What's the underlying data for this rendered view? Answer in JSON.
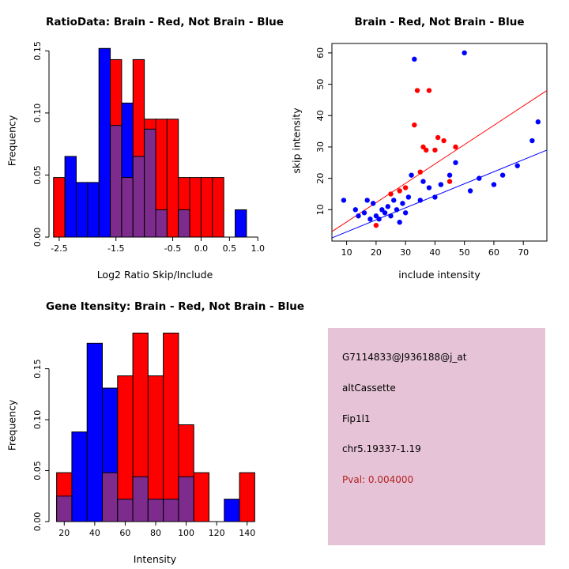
{
  "page": {
    "background": "#FFFFFF"
  },
  "colors": {
    "brain": "#FF0000",
    "not_brain": "#0000FF",
    "overlap": "#7D2B8C",
    "pval": "#B22222",
    "info_bg": "#E6C3D6"
  },
  "chart_data": [
    {
      "type": "bar",
      "subtype": "histogram-overlay",
      "title": "RatioData: Brain - Red, Not Brain - Blue",
      "xlabel": "Log2 Ratio Skip/Include",
      "ylabel": "Frequency",
      "xlim": [
        -2.68,
        1.08
      ],
      "ylim": [
        0,
        0.156
      ],
      "x_ticks": [
        -2.5,
        -1.5,
        -0.5,
        0.0,
        0.5,
        1.0
      ],
      "x_tick_labels": [
        "-2.5",
        "-1.5",
        "-0.5",
        "0.0",
        "0.5",
        "1.0"
      ],
      "y_ticks": [
        0,
        0.05,
        0.1,
        0.15
      ],
      "y_tick_labels": [
        "0.00",
        "0.05",
        "0.10",
        "0.15"
      ],
      "bin_start": -2.6,
      "bin_width": 0.2,
      "series": [
        {
          "name": "Brain",
          "color": "#FF0000",
          "values": [
            0.048,
            0,
            0,
            0,
            0,
            0.143,
            0.048,
            0.143,
            0.095,
            0.095,
            0.095,
            0.048,
            0.048,
            0.048,
            0.048,
            0,
            0,
            0
          ]
        },
        {
          "name": "Not Brain",
          "color": "#0000FF",
          "values": [
            0,
            0.065,
            0.044,
            0.044,
            0.152,
            0.09,
            0.108,
            0.065,
            0.087,
            0.022,
            0,
            0.022,
            0,
            0,
            0,
            0,
            0.022,
            0
          ]
        }
      ],
      "overlap_color": "#7D2B8C",
      "grid": false,
      "margins": {
        "l": 62,
        "r": 28,
        "t": 55,
        "b": 60
      }
    },
    {
      "type": "scatter",
      "title": "Brain - Red, Not Brain - Blue",
      "xlabel": "include intensity",
      "ylabel": "skip intensity",
      "xlim": [
        5,
        78
      ],
      "ylim": [
        0,
        63
      ],
      "x_ticks": [
        10,
        20,
        30,
        40,
        50,
        60,
        70
      ],
      "x_tick_labels": [
        "10",
        "20",
        "30",
        "40",
        "50",
        "60",
        "70"
      ],
      "y_ticks": [
        10,
        20,
        30,
        40,
        50,
        60
      ],
      "y_tick_labels": [
        "10",
        "20",
        "30",
        "40",
        "50",
        "60"
      ],
      "series": [
        {
          "name": "Brain",
          "color": "#FF0000",
          "points": [
            [
              20,
              5
            ],
            [
              25,
              15
            ],
            [
              28,
              16
            ],
            [
              30,
              17
            ],
            [
              33,
              37
            ],
            [
              34,
              48
            ],
            [
              35,
              22
            ],
            [
              36,
              30
            ],
            [
              37,
              29
            ],
            [
              38,
              48
            ],
            [
              40,
              29
            ],
            [
              41,
              33
            ],
            [
              43,
              32
            ],
            [
              45,
              19
            ],
            [
              47,
              30
            ]
          ]
        },
        {
          "name": "Not Brain",
          "color": "#0000FF",
          "points": [
            [
              9,
              13
            ],
            [
              13,
              10
            ],
            [
              14,
              8
            ],
            [
              16,
              9
            ],
            [
              17,
              13
            ],
            [
              18,
              7
            ],
            [
              19,
              12
            ],
            [
              20,
              8
            ],
            [
              21,
              7
            ],
            [
              22,
              10
            ],
            [
              23,
              9
            ],
            [
              24,
              11
            ],
            [
              25,
              8
            ],
            [
              26,
              13
            ],
            [
              27,
              10
            ],
            [
              28,
              6
            ],
            [
              29,
              12
            ],
            [
              30,
              9
            ],
            [
              31,
              14
            ],
            [
              32,
              21
            ],
            [
              33,
              58
            ],
            [
              35,
              13
            ],
            [
              36,
              19
            ],
            [
              38,
              17
            ],
            [
              40,
              14
            ],
            [
              42,
              18
            ],
            [
              45,
              21
            ],
            [
              47,
              25
            ],
            [
              50,
              60
            ],
            [
              52,
              16
            ],
            [
              55,
              20
            ],
            [
              60,
              18
            ],
            [
              63,
              21
            ],
            [
              68,
              24
            ],
            [
              73,
              32
            ],
            [
              75,
              38
            ]
          ]
        }
      ],
      "lines": [
        {
          "color": "#FF0000",
          "x1": 5,
          "y1": 3,
          "x2": 78,
          "y2": 48
        },
        {
          "color": "#0000FF",
          "x1": 5,
          "y1": 1,
          "x2": 78,
          "y2": 29
        }
      ],
      "box": true,
      "grid": false,
      "margins": {
        "l": 60,
        "r": 28,
        "t": 55,
        "b": 55
      }
    },
    {
      "type": "bar",
      "subtype": "histogram-overlay",
      "title": "Gene Itensity: Brain - Red, Not Brain - Blue",
      "xlabel": "Intensity",
      "ylabel": "Frequency",
      "xlim": [
        10,
        150
      ],
      "ylim": [
        0,
        0.19
      ],
      "x_ticks": [
        20,
        40,
        60,
        80,
        100,
        120,
        140
      ],
      "x_tick_labels": [
        "20",
        "40",
        "60",
        "80",
        "100",
        "120",
        "140"
      ],
      "y_ticks": [
        0,
        0.05,
        0.1,
        0.15
      ],
      "y_tick_labels": [
        "0.00",
        "0.05",
        "0.10",
        "0.15"
      ],
      "bin_start": 15,
      "bin_width": 10,
      "series": [
        {
          "name": "Brain",
          "color": "#FF0000",
          "values": [
            0.048,
            0,
            0,
            0.048,
            0.143,
            0.185,
            0.143,
            0.185,
            0.095,
            0.048,
            0,
            0,
            0.048
          ]
        },
        {
          "name": "Not Brain",
          "color": "#0000FF",
          "values": [
            0.025,
            0.088,
            0.175,
            0.131,
            0.022,
            0.044,
            0.022,
            0.022,
            0.044,
            0,
            0,
            0.022,
            0
          ]
        }
      ],
      "overlap_color": "#7D2B8C",
      "grid": false,
      "margins": {
        "l": 62,
        "r": 28,
        "t": 55,
        "b": 60
      }
    }
  ],
  "info_panel": {
    "background": "#E6C3D6",
    "probe_id": "G7114833@J936188@j_at",
    "event_type": "altCassette",
    "gene": "Fip1l1",
    "location": "chr5.19337-1.19",
    "pval": "Pval: 0.004000",
    "pval_color": "#B22222"
  }
}
